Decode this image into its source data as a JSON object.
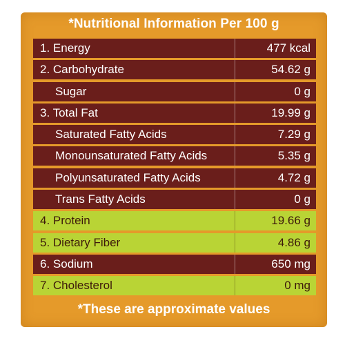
{
  "title": "*Nutritional Information Per 100 g",
  "footer": "*These are approximate values",
  "colors": {
    "panel": "#e59a2a",
    "dark_row": "#6a1e1b",
    "highlight_row": "#b9d435"
  },
  "rows": [
    {
      "label": "1. Energy",
      "value": "477 kcal",
      "sub": false,
      "highlight": false
    },
    {
      "label": "2. Carbohydrate",
      "value": "54.62 g",
      "sub": false,
      "highlight": false
    },
    {
      "label": "Sugar",
      "value": "0 g",
      "sub": true,
      "highlight": false
    },
    {
      "label": "3. Total Fat",
      "value": "19.99 g",
      "sub": false,
      "highlight": false
    },
    {
      "label": "Saturated Fatty Acids",
      "value": "7.29 g",
      "sub": true,
      "highlight": false
    },
    {
      "label": "Monounsaturated Fatty Acids",
      "value": "5.35 g",
      "sub": true,
      "highlight": false
    },
    {
      "label": "Polyunsaturated Fatty Acids",
      "value": "4.72 g",
      "sub": true,
      "highlight": false
    },
    {
      "label": "Trans Fatty Acids",
      "value": "0 g",
      "sub": true,
      "highlight": false
    },
    {
      "label": "4. Protein",
      "value": "19.66 g",
      "sub": false,
      "highlight": true
    },
    {
      "label": "5. Dietary Fiber",
      "value": "4.86 g",
      "sub": false,
      "highlight": true
    },
    {
      "label": "6. Sodium",
      "value": "650 mg",
      "sub": false,
      "highlight": false
    },
    {
      "label": "7. Cholesterol",
      "value": "0 mg",
      "sub": false,
      "highlight": true
    }
  ]
}
